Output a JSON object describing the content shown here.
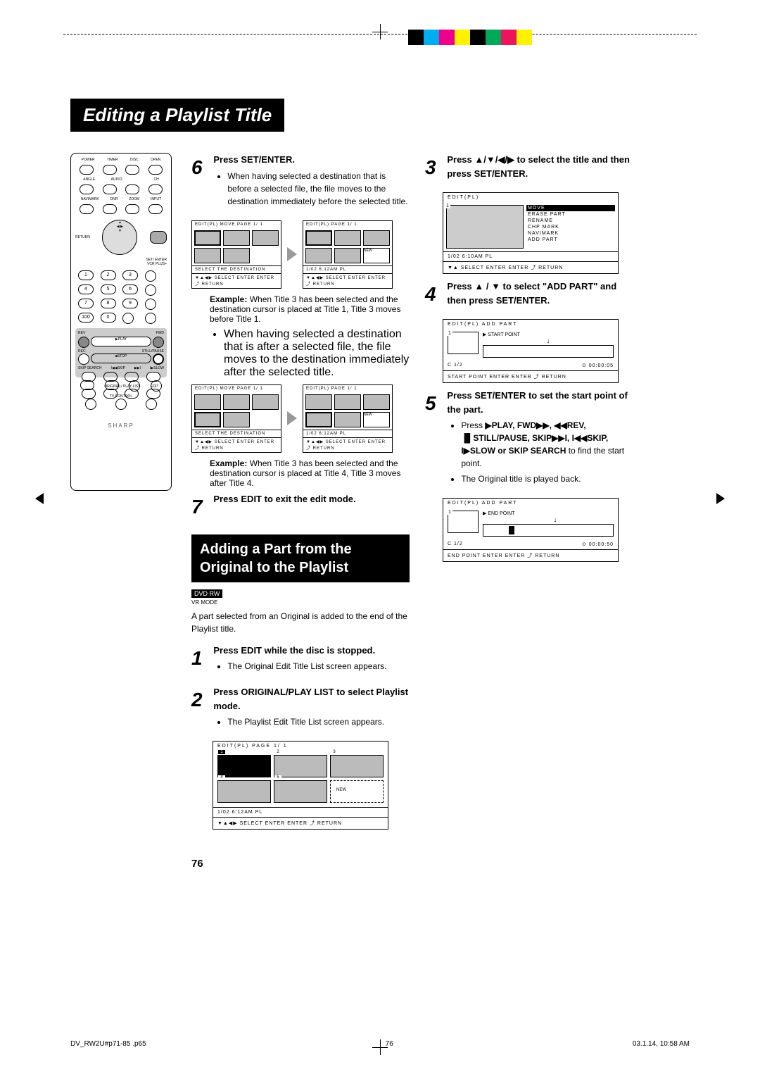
{
  "page_title": "Editing a Playlist Title",
  "crop_colors": [
    "#000000",
    "#00aeef",
    "#ec008c",
    "#fff200",
    "#000000",
    "#00a859",
    "#ed145b",
    "#fff200"
  ],
  "remote": {
    "top_labels": [
      "POWER",
      "TIMER",
      "DISC",
      "OPEN"
    ],
    "row2": [
      "ANGLE",
      "AUDIO",
      "CH"
    ],
    "row3": [
      "NAVIMARK",
      "DNR",
      "ZOOM",
      "INPUT"
    ],
    "set_enter": "SET/\nENTER",
    "return": "RETURN",
    "vcr_plus": "VCR PLUS+",
    "timer_prog": "TIMER PROG",
    "numbers": [
      "1",
      "2",
      "3",
      "4",
      "5",
      "6",
      "7",
      "8",
      "9",
      "100",
      "0"
    ],
    "rev": "REV",
    "fwd": "FWD",
    "play": "▶PLAY",
    "rec": "REC",
    "stop": "■STOP",
    "still": "STILL/PAUSE",
    "skip_search": "SKIP\nSEARCH",
    "skip_l": "I◀◀SKIP",
    "skip_r": "▶▶I",
    "slow": "I▶SLOW",
    "playlist": "ORIGINAL/\nPLAY LIST",
    "edit": "EDIT",
    "tv_control": "TV CONTROL",
    "brand": "SHARP"
  },
  "step6": {
    "num": "6",
    "head_pre": "Press ",
    "head_b": "SET/ENTER",
    "head_suf": ".",
    "bullet": "When having selected a destination that is before a selected file, the file moves to the destination immediately before the selected title.",
    "example_label": "Example:",
    "example_text": " When Title 3 has been selected and the destination cursor is placed at Title 1, Title 3 moves before Title 1.",
    "bullet2": "When having selected a destination that is after a selected file, the file moves to the destination immediately after the selected title.",
    "example2_text": " When Title 3 has been selected and the destination cursor is placed at Title 4, Title 3 moves after Title 4."
  },
  "step7": {
    "num": "7",
    "head_pre": "Press ",
    "head_b": "EDIT",
    "head_suf": " to exit the edit mode."
  },
  "screen_small": {
    "hdr1": "EDIT(PL) MOVE  PAGE 1/ 1",
    "hdr2": "EDIT(PL)        PAGE 1/ 1",
    "new": "NEW",
    "foot1": "SELECT THE DESTINATION",
    "foot_nav": "▼▲◀▶ SELECT  ENTER ENTER  ⤴ RETURN",
    "foot2": "1/02  6:12AM PL"
  },
  "section_title": "Adding a Part from the Original to the Playlist",
  "badge": "DVD RW",
  "badge_sub": "VR MODE",
  "intro": "A part selected from an Original is added to the end of the Playlist title.",
  "step1": {
    "num": "1",
    "head_pre": "Press ",
    "head_b": "EDIT",
    "head_suf": " while the disc is stopped.",
    "bullet": "The Original Edit Title List screen appears."
  },
  "step2": {
    "num": "2",
    "head_pre": "Press ",
    "head_b": "ORIGINAL/PLAY LIST",
    "head_suf": " to select Playlist mode.",
    "bullet": "The Playlist Edit Title List screen appears."
  },
  "screen_bottom": {
    "hdr": "EDIT(PL)          PAGE  1/  1",
    "labels": [
      "1",
      "2",
      "3",
      "4",
      "5",
      "NEW"
    ],
    "foot1": "1/02   6:12AM  PL",
    "foot2": "▼▲◀▶ SELECT   ENTER ENTER   ⤴ RETURN"
  },
  "step3": {
    "num": "3",
    "head": "Press ▲/▼/◀/▶ to select the title and then press ",
    "head_b": "SET/ENTER",
    "head_suf": "."
  },
  "screen_menu": {
    "hdr": "EDIT(PL)",
    "n": "1",
    "items": [
      "MOVE",
      "ERASE  PART",
      "RENAME",
      "CHP  MARK",
      "NAVIMARK",
      "ADD  PART"
    ],
    "hl_idx": 0,
    "foot_l": "1/02   6:10AM  PL",
    "foot_nav": "▼▲ SELECT   ENTER ENTER       ⤴ RETURN"
  },
  "step4": {
    "num": "4",
    "head": "Press ▲ / ▼ to select \"ADD PART\" and then press ",
    "head_b": "SET/ENTER",
    "head_suf": "."
  },
  "screen_add1": {
    "hdr": "EDIT(PL)   ADD  PART",
    "label": "▶      START  POINT",
    "n": "1",
    "c": "C   1/2",
    "time": "⊙  00:00:05",
    "foot": "START  POINT   ENTER ENTER ⤴ RETURN"
  },
  "step5": {
    "num": "5",
    "head_pre": "Press ",
    "head_b": "SET/ENTER",
    "head_suf": " to set the start point of the part.",
    "bullet1_pre": "Press ",
    "bullet1_items": "▶PLAY, FWD▶▶, ◀◀REV, ▐▌STILL/PAUSE, SKIP▶▶I, I◀◀SKIP, I▶SLOW or SKIP SEARCH",
    "bullet1_suf": " to find the start point.",
    "bullet2": "The Original title is played back."
  },
  "screen_add2": {
    "hdr": "EDIT(PL)   ADD  PART",
    "label": "▶      END  POINT",
    "n": "1",
    "c": "C   1/2",
    "time": "⊙  00:00:50",
    "foot": "END  POINT      ENTER ENTER ⤴ RETURN"
  },
  "page_number": "76",
  "footer_left": "DV_RW2U#p71-85 .p65",
  "footer_mid": "76",
  "footer_right": "03.1.14, 10:58 AM"
}
